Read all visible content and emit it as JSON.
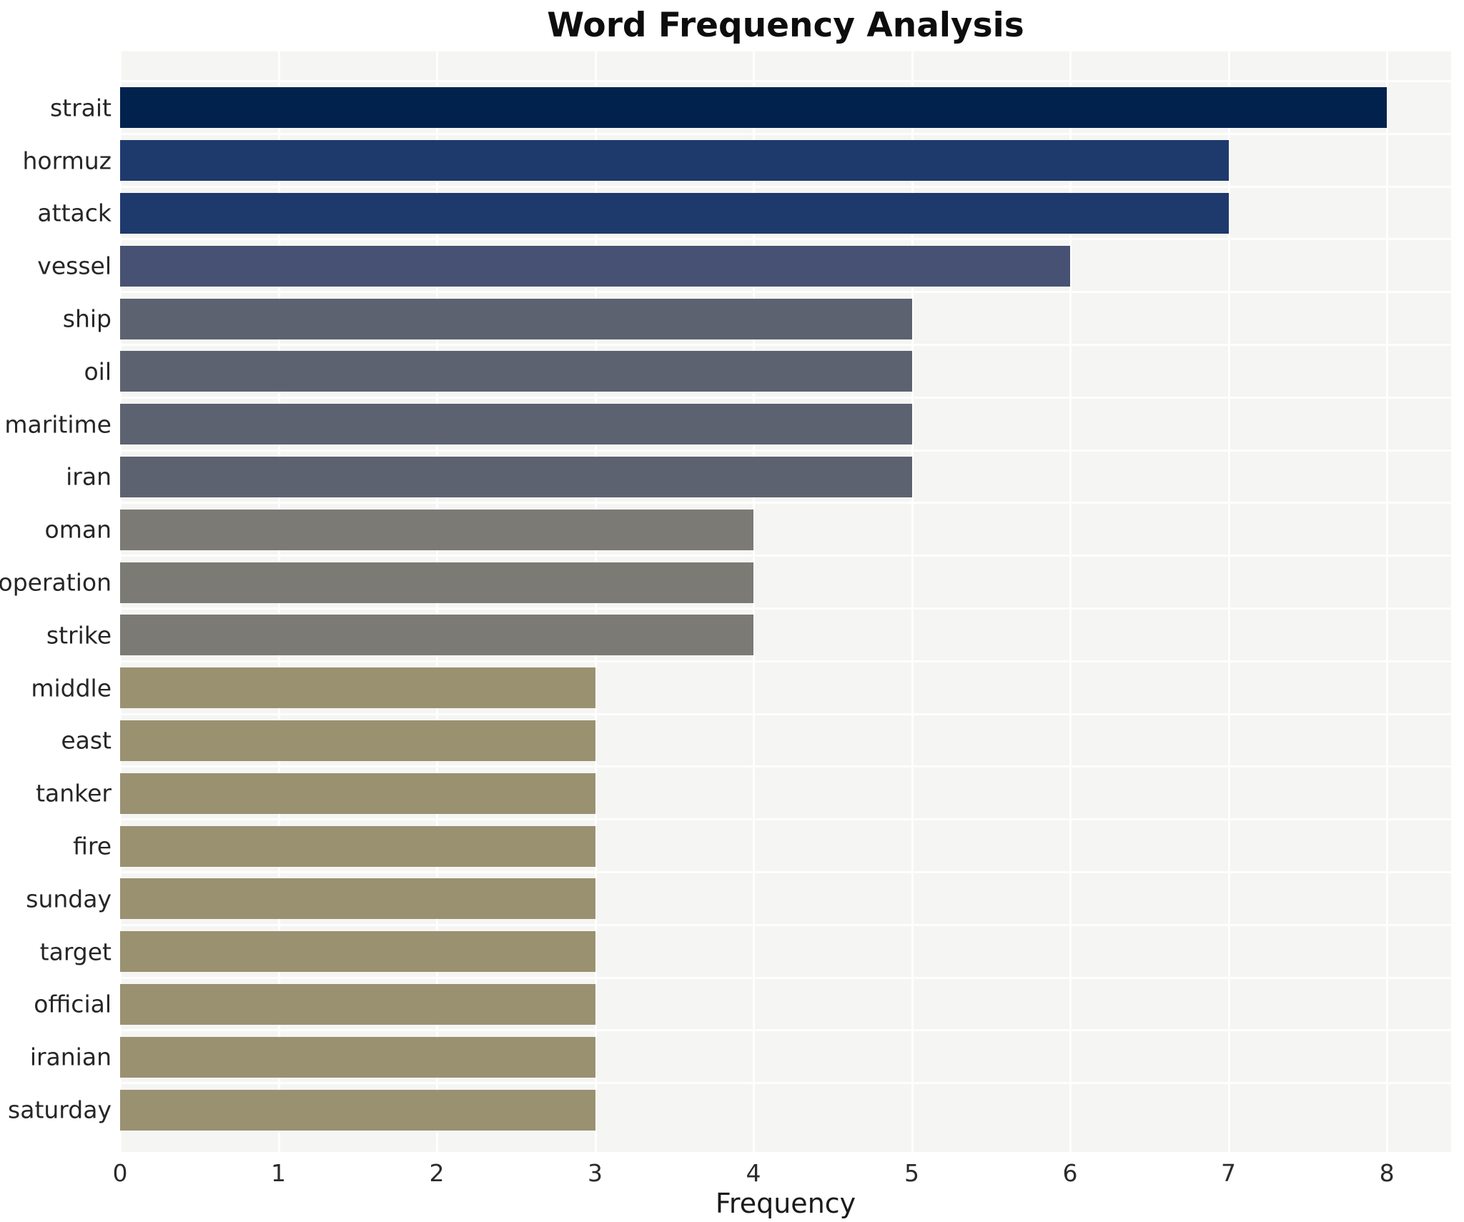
{
  "chart_data": {
    "type": "bar",
    "orientation": "horizontal",
    "title": "Word Frequency Analysis",
    "xlabel": "Frequency",
    "ylabel": "",
    "categories": [
      "strait",
      "hormuz",
      "attack",
      "vessel",
      "ship",
      "oil",
      "maritime",
      "iran",
      "oman",
      "operation",
      "strike",
      "middle",
      "east",
      "tanker",
      "fire",
      "sunday",
      "target",
      "official",
      "iranian",
      "saturday"
    ],
    "values": [
      8,
      7,
      7,
      6,
      5,
      5,
      5,
      5,
      4,
      4,
      4,
      3,
      3,
      3,
      3,
      3,
      3,
      3,
      3,
      3
    ],
    "bar_colors": [
      "#02224e",
      "#1e3a6d",
      "#1e3a6d",
      "#465173",
      "#5d6271",
      "#5d6271",
      "#5d6271",
      "#5d6271",
      "#7b7a75",
      "#7b7a75",
      "#7b7a75",
      "#9a9171",
      "#9a9171",
      "#9a9171",
      "#9a9171",
      "#9a9171",
      "#9a9171",
      "#9a9171",
      "#9a9171",
      "#9a9171"
    ],
    "xlim": [
      0,
      8
    ],
    "xticks": [
      0,
      1,
      2,
      3,
      4,
      5,
      6,
      7,
      8
    ],
    "grid": "on",
    "legend": "none",
    "plot_bg_color": "#f5f5f3",
    "grid_color": "#ffffff",
    "page_bg_color": "#ffffff"
  }
}
